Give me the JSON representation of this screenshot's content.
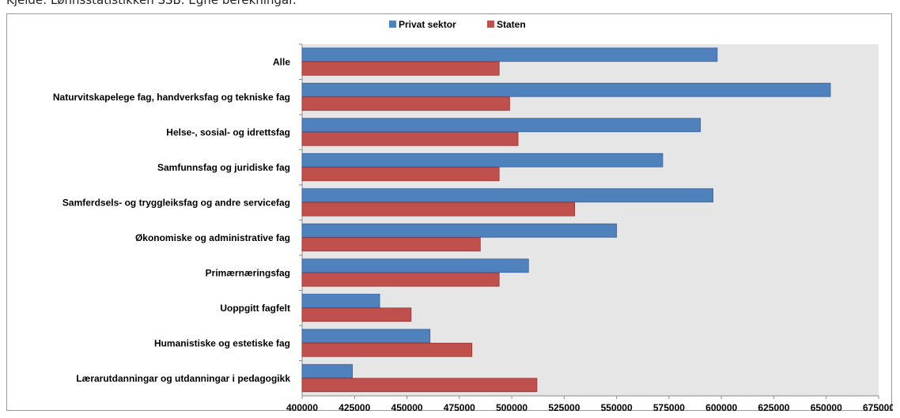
{
  "caption": "Kjelde: Lønnsstatistikken SSB. Egne berekningar.",
  "chart_data": {
    "type": "bar",
    "orientation": "horizontal",
    "categories": [
      "Alle",
      "Naturvitskapelege fag, handverksfag og tekniske fag",
      "Helse-, sosial- og idrettsfag",
      "Samfunnsfag og juridiske fag",
      "Samferdsels- og tryggleiksfag og andre servicefag",
      "Økonomiske og administrative fag",
      "Primærnæringsfag",
      "Uoppgitt fagfelt",
      "Humanistiske og estetiske fag",
      "Lærarutdanningar og utdanningar i pedagogikk"
    ],
    "series": [
      {
        "name": "Privat sektor",
        "color": "#4F81BD",
        "values": [
          598000,
          652000,
          590000,
          572000,
          596000,
          550000,
          508000,
          437000,
          461000,
          424000
        ]
      },
      {
        "name": "Staten",
        "color": "#C0504D",
        "values": [
          494000,
          499000,
          503000,
          494000,
          530000,
          485000,
          494000,
          452000,
          481000,
          512000
        ]
      }
    ],
    "xlim": [
      400000,
      675000
    ],
    "xticks": [
      "400000",
      "425000",
      "450000",
      "475000",
      "500000",
      "525000",
      "550000",
      "575000",
      "600000",
      "625000",
      "650000",
      "675000"
    ],
    "legend_position": "top",
    "plot_background": "#E6E6E6"
  }
}
